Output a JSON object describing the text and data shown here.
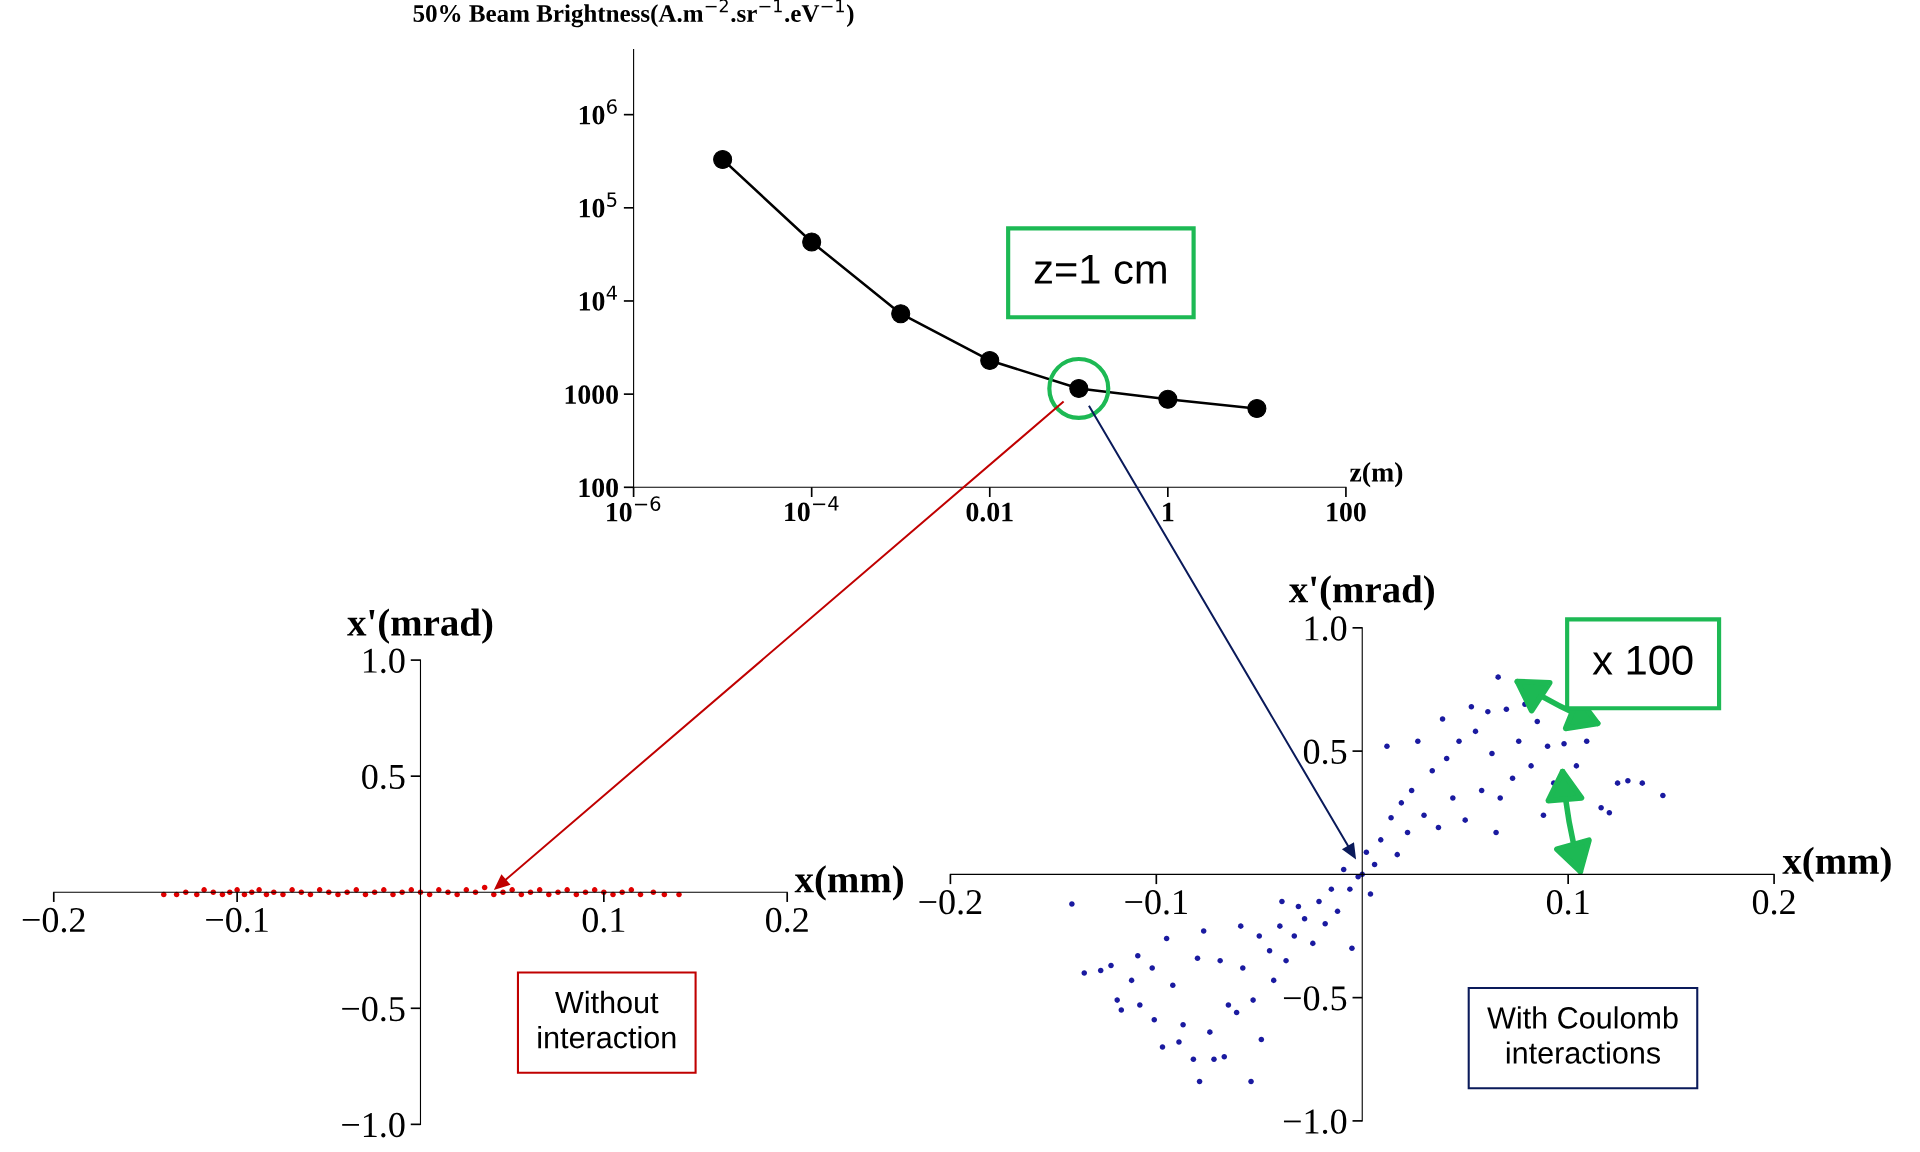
{
  "chart_data": [
    {
      "type": "line",
      "ylabel": "50% Beam Brightness(A.m$^{−2}$.sr$^{−1}$.eV$^{−1}$)",
      "xlabel": "z(m)",
      "log": "xy",
      "marker": "circle",
      "line_style": "solid",
      "grid": false,
      "x": [
        1e-05,
        0.0001,
        0.001,
        0.01,
        0.1,
        1,
        10
      ],
      "series": [
        {
          "color": "#000000",
          "values": [
            330000,
            43000,
            7300,
            2300,
            1150,
            880,
            700
          ]
        }
      ],
      "xlim": [
        1e-06,
        100
      ],
      "ylim": [
        100,
        5000000
      ],
      "xticks": [
        {
          "value": 1e-06,
          "label": "10$^{−6}$"
        },
        {
          "value": 0.0001,
          "label": "10$^{−4}$"
        },
        0.01,
        1,
        100
      ],
      "yticks": [
        100,
        1000,
        {
          "value": 10000,
          "label": "10$^{4}$"
        },
        {
          "value": 100000,
          "label": "10$^{5}$"
        },
        {
          "value": 1000000,
          "label": "10$^{6}$"
        }
      ],
      "annotations": [
        {
          "text": "z=1 cm",
          "x": 0.1,
          "y": 1150
        }
      ]
    },
    {
      "type": "scatter",
      "xlabel": "x(mm)",
      "ylabel": "x'(mrad)",
      "marker": "circle",
      "grid": false,
      "x": [
        -0.14,
        -0.133,
        -0.128,
        -0.122,
        -0.118,
        -0.113,
        -0.108,
        -0.104,
        -0.1,
        -0.096,
        -0.092,
        -0.088,
        -0.084,
        -0.08,
        -0.075,
        -0.07,
        -0.065,
        -0.06,
        -0.055,
        -0.05,
        -0.045,
        -0.04,
        -0.035,
        -0.03,
        -0.025,
        -0.02,
        -0.015,
        -0.01,
        -0.005,
        0.0,
        0.005,
        0.01,
        0.015,
        0.02,
        0.025,
        0.03,
        0.035,
        0.04,
        0.045,
        0.05,
        0.055,
        0.06,
        0.065,
        0.07,
        0.075,
        0.08,
        0.085,
        0.09,
        0.095,
        0.1,
        0.105,
        0.11,
        0.115,
        0.12,
        0.127,
        0.133,
        0.141
      ],
      "series": [
        {
          "color": "#e00000",
          "values": [
            -0.01,
            -0.01,
            0.0,
            -0.01,
            0.01,
            0.0,
            -0.01,
            0.0,
            0.01,
            -0.01,
            0.0,
            0.01,
            -0.01,
            0.0,
            -0.01,
            0.01,
            0.0,
            -0.01,
            0.01,
            0.0,
            -0.01,
            0.0,
            0.01,
            -0.01,
            0.0,
            0.01,
            -0.01,
            0.0,
            0.01,
            0.0,
            -0.01,
            0.01,
            0.0,
            -0.01,
            0.01,
            0.0,
            0.02,
            -0.01,
            0.0,
            0.01,
            -0.01,
            0.0,
            0.01,
            -0.01,
            0.0,
            0.01,
            -0.01,
            0.0,
            0.01,
            0.0,
            -0.01,
            0.0,
            0.01,
            -0.01,
            0.0,
            -0.01,
            -0.01
          ]
        }
      ],
      "xlim": [
        -0.2,
        0.2
      ],
      "ylim": [
        -1,
        1
      ],
      "xticks": [
        {
          "value": -0.2,
          "label": "−0.2"
        },
        {
          "value": -0.1,
          "label": "−0.1"
        },
        0.1,
        0.2
      ],
      "yticks": [
        {
          "value": -1,
          "label": "−1.0"
        },
        {
          "value": -0.5,
          "label": "−0.5"
        },
        0.5,
        {
          "value": 1,
          "label": "1.0"
        }
      ],
      "annotations": [
        "Without\ninteraction"
      ]
    },
    {
      "type": "scatter",
      "xlabel": "x(mm)",
      "ylabel": "x'(mrad)",
      "marker": "circle",
      "grid": false,
      "x": [
        0.066,
        -0.141,
        -0.135,
        -0.127,
        -0.122,
        -0.119,
        -0.117,
        -0.112,
        -0.109,
        -0.108,
        -0.102,
        -0.101,
        -0.097,
        -0.095,
        -0.092,
        -0.089,
        -0.087,
        -0.082,
        -0.08,
        -0.079,
        -0.077,
        -0.074,
        -0.072,
        -0.069,
        -0.067,
        -0.065,
        -0.061,
        -0.059,
        -0.058,
        -0.054,
        -0.053,
        -0.05,
        -0.049,
        -0.045,
        -0.043,
        -0.04,
        -0.039,
        -0.037,
        -0.033,
        -0.031,
        -0.028,
        -0.024,
        -0.021,
        -0.018,
        -0.015,
        -0.012,
        -0.009,
        -0.006,
        -0.005,
        -0.002,
        0.0,
        0.002,
        0.004,
        0.006,
        0.009,
        0.012,
        0.014,
        0.017,
        0.019,
        0.022,
        0.024,
        0.027,
        0.03,
        0.034,
        0.037,
        0.039,
        0.041,
        0.044,
        0.047,
        0.05,
        0.053,
        0.055,
        0.058,
        0.061,
        0.063,
        0.065,
        0.067,
        0.07,
        0.073,
        0.076,
        0.079,
        0.082,
        0.085,
        0.088,
        0.09,
        0.093,
        0.098,
        0.104,
        0.109,
        0.116,
        0.12,
        0.124,
        0.129,
        0.136,
        0.146
      ],
      "series": [
        {
          "color": "#1a1aa0",
          "values": [
            0.8,
            -0.12,
            -0.4,
            -0.39,
            -0.37,
            -0.51,
            -0.55,
            -0.43,
            -0.33,
            -0.53,
            -0.38,
            -0.59,
            -0.7,
            -0.26,
            -0.45,
            -0.68,
            -0.61,
            -0.75,
            -0.34,
            -0.84,
            -0.23,
            -0.64,
            -0.75,
            -0.35,
            -0.74,
            -0.53,
            -0.56,
            -0.21,
            -0.38,
            -0.84,
            -0.51,
            -0.25,
            -0.67,
            -0.31,
            -0.43,
            -0.21,
            -0.11,
            -0.35,
            -0.25,
            -0.13,
            -0.18,
            -0.28,
            -0.11,
            -0.2,
            -0.06,
            -0.15,
            0.02,
            -0.06,
            -0.3,
            -0.01,
            0.0,
            0.09,
            -0.08,
            0.04,
            0.14,
            0.52,
            0.23,
            0.08,
            0.29,
            0.17,
            0.34,
            0.54,
            0.24,
            0.42,
            0.19,
            0.63,
            0.47,
            0.31,
            0.54,
            0.22,
            0.68,
            0.58,
            0.34,
            0.66,
            0.49,
            0.17,
            0.31,
            0.67,
            0.39,
            0.54,
            0.69,
            0.44,
            0.62,
            0.24,
            0.52,
            0.37,
            0.53,
            0.44,
            0.54,
            0.27,
            0.25,
            0.37,
            0.38,
            0.37,
            0.32
          ]
        }
      ],
      "xlim": [
        -0.2,
        0.2
      ],
      "ylim": [
        -1,
        1
      ],
      "xticks": [
        {
          "value": -0.2,
          "label": "−0.2"
        },
        {
          "value": -0.1,
          "label": "−0.1"
        },
        0.1,
        0.2
      ],
      "yticks": [
        {
          "value": -1,
          "label": "−1.0"
        },
        {
          "value": -0.5,
          "label": "−0.5"
        },
        0.5,
        {
          "value": 1,
          "label": "1.0"
        }
      ],
      "annotations": [
        "With Coulomb\ninteractions",
        "x 100"
      ]
    }
  ]
}
